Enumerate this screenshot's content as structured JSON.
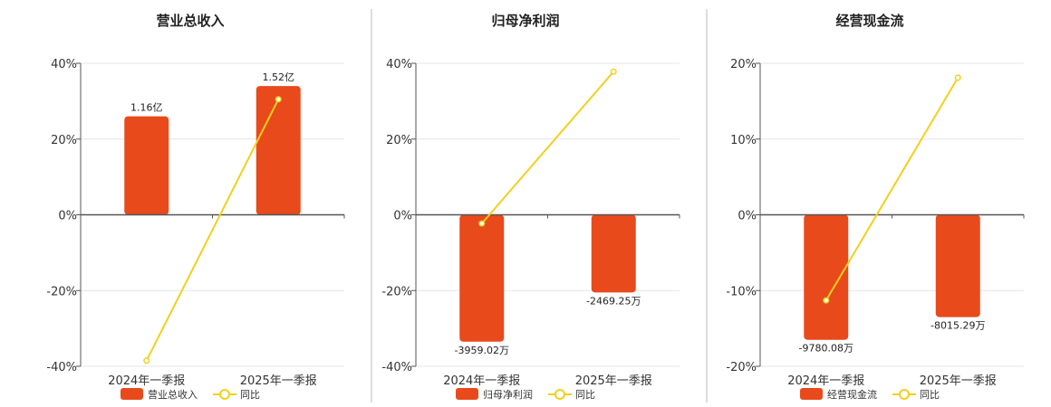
{
  "colors": {
    "bar": "#E84A1B",
    "line": "#F2D01E",
    "grid": "#E6E6E6",
    "axis": "#555555",
    "divider": "#BBBBBB"
  },
  "chart_data": [
    {
      "type": "bar",
      "title": "营业总收入",
      "categories": [
        "2024年一季报",
        "2025年一季报"
      ],
      "yticks": [
        "40%",
        "20%",
        "0%",
        "-20%",
        "-40%"
      ],
      "ylim": [
        -40,
        40
      ],
      "series": [
        {
          "name": "营业总收入",
          "kind": "bar",
          "values": [
            26,
            34
          ],
          "labels": [
            "1.16亿",
            "1.52亿"
          ]
        },
        {
          "name": "同比",
          "kind": "line",
          "values": [
            -38.5,
            30.5
          ]
        }
      ]
    },
    {
      "type": "bar",
      "title": "归母净利润",
      "categories": [
        "2024年一季报",
        "2025年一季报"
      ],
      "yticks": [
        "40%",
        "20%",
        "0%",
        "-20%",
        "-40%"
      ],
      "ylim": [
        -40,
        40
      ],
      "series": [
        {
          "name": "归母净利润",
          "kind": "bar",
          "values": [
            -33.5,
            -20.5
          ],
          "labels": [
            "-3959.02万",
            "-2469.25万"
          ]
        },
        {
          "name": "同比",
          "kind": "line",
          "values": [
            -2.3,
            37.8
          ]
        }
      ]
    },
    {
      "type": "bar",
      "title": "经营现金流",
      "categories": [
        "2024年一季报",
        "2025年一季报"
      ],
      "yticks": [
        "20%",
        "10%",
        "0%",
        "-10%",
        "-20%"
      ],
      "ylim": [
        -20,
        20
      ],
      "series": [
        {
          "name": "经营现金流",
          "kind": "bar",
          "values": [
            -16.5,
            -13.5
          ],
          "labels": [
            "-9780.08万",
            "-8015.29万"
          ]
        },
        {
          "name": "同比",
          "kind": "line",
          "values": [
            -11.3,
            18.1
          ]
        }
      ]
    }
  ]
}
